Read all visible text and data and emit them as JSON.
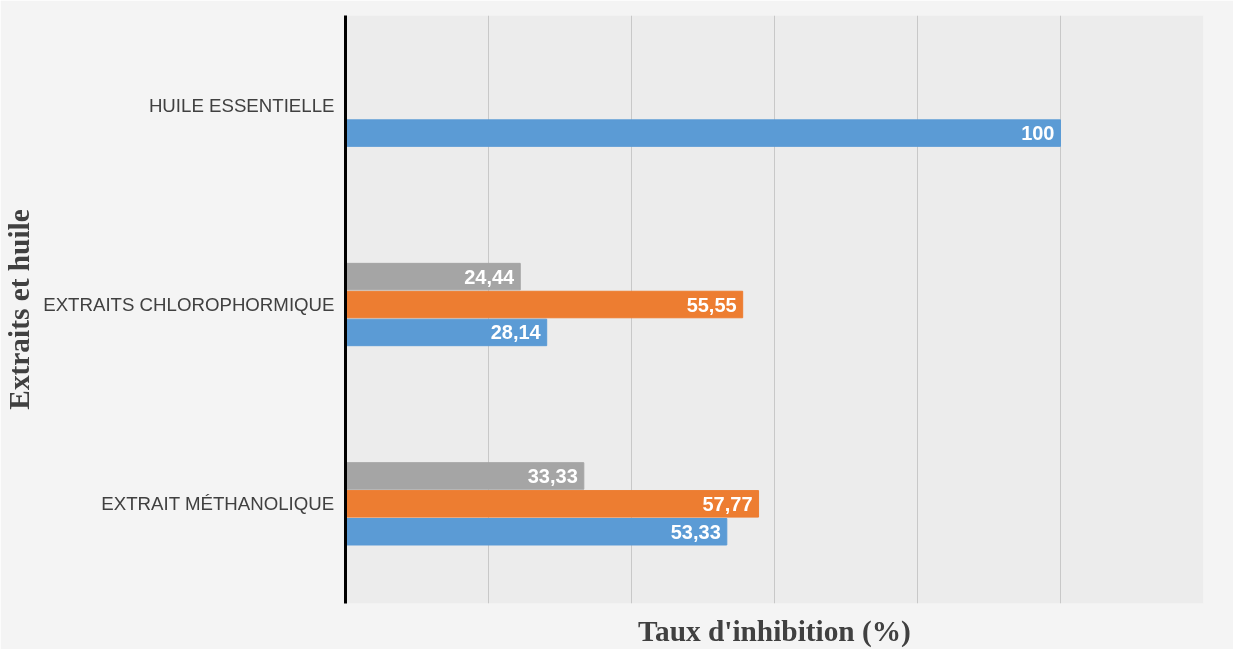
{
  "chart_data": {
    "type": "bar",
    "orientation": "horizontal",
    "xlabel": "Taux d'inhibition (%)",
    "ylabel": "Extraits et huile",
    "categories": [
      "HUILE ESSENTIELLE",
      "EXTRAITS CHLOROPHORMIQUE",
      "EXTRAIT MÉTHANOLIQUE"
    ],
    "series": [
      {
        "color": "#5b9bd5",
        "values": [
          100,
          28.14,
          53.33
        ],
        "value_labels": [
          "100",
          "28,14",
          "53,33"
        ]
      },
      {
        "color": "#ed7d31",
        "values": [
          null,
          55.55,
          57.77
        ],
        "value_labels": [
          null,
          "55,55",
          "57,77"
        ]
      },
      {
        "color": "#a5a5a5",
        "values": [
          null,
          24.44,
          33.33
        ],
        "value_labels": [
          null,
          "24,44",
          "33,33"
        ]
      }
    ],
    "xlim": [
      0,
      120
    ],
    "xticks": [
      {
        "value": 0,
        "label": null
      },
      {
        "value": 20,
        "label": null
      },
      {
        "value": 40,
        "label": null
      },
      {
        "value": 60,
        "label": null
      },
      {
        "value": 80,
        "label": null
      },
      {
        "value": 100,
        "label": null
      },
      {
        "value": 120,
        "label": null
      }
    ],
    "grid": "x",
    "tick_labels": "y"
  }
}
